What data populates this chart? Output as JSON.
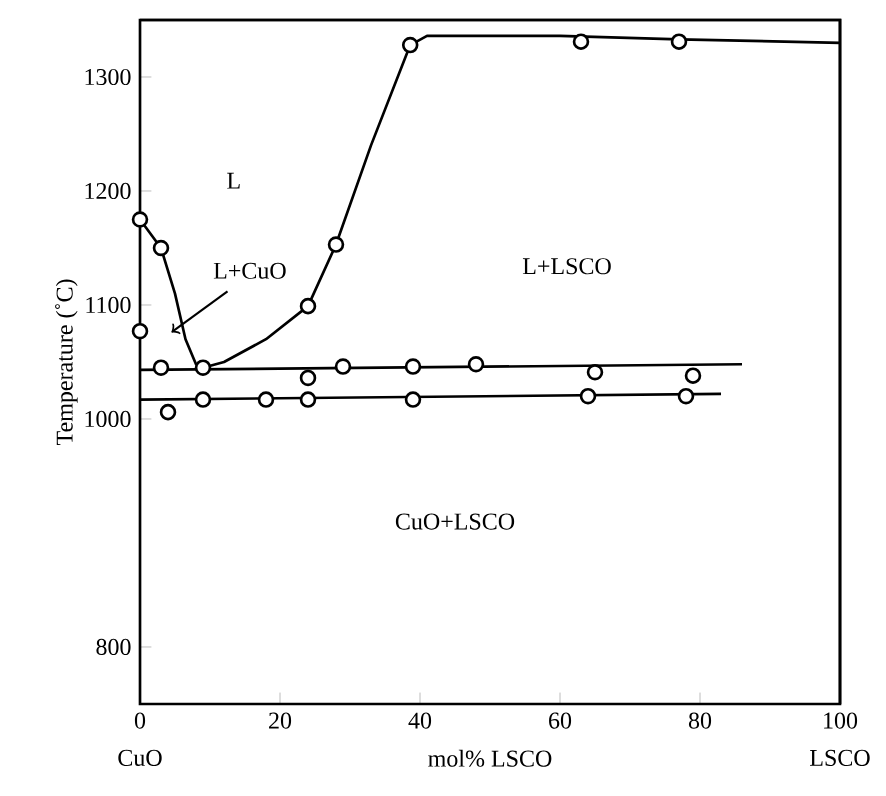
{
  "chart_data": {
    "type": "line",
    "xlabel": "mol% LSCO",
    "ylabel": "Temperature (˚C)",
    "xlim": [
      0,
      100
    ],
    "ylim": [
      750,
      1350
    ],
    "xticks": [
      0,
      20,
      40,
      60,
      80,
      100
    ],
    "yticks": [
      800,
      1000,
      1100,
      1200,
      1300
    ],
    "grid": false,
    "line_style": "solid",
    "annotations": [
      "L",
      "L+CuO",
      "L+LSCO",
      "CuO+LSCO",
      "CuO",
      "LSCO"
    ],
    "series": [
      {
        "color": "#000000",
        "marker": "none",
        "x": [
          0,
          3,
          5,
          6.5,
          8,
          9
        ],
        "values": [
          1175,
          1150,
          1110,
          1070,
          1048,
          1045
        ]
      },
      {
        "color": "#000000",
        "marker": "none",
        "x": [
          9,
          12,
          18,
          24,
          28,
          33,
          38.6,
          41,
          60,
          77,
          100
        ],
        "values": [
          1045,
          1050,
          1070,
          1099,
          1153,
          1240,
          1328,
          1336,
          1336,
          1333,
          1330
        ]
      },
      {
        "color": "#000000",
        "marker": "none",
        "x": [
          0,
          86
        ],
        "values": [
          1043,
          1048
        ]
      },
      {
        "color": "#000000",
        "marker": "none",
        "x": [
          0,
          83
        ],
        "values": [
          1017,
          1022
        ]
      },
      {
        "type": "scatter",
        "color": "#000000",
        "marker": "circle",
        "x": [
          0,
          0,
          3,
          24,
          28,
          38.6,
          63,
          77,
          3,
          9,
          24,
          29,
          39,
          48,
          65,
          79,
          4,
          9,
          18,
          24,
          39,
          64,
          78
        ],
        "values": [
          1175,
          1077,
          1150,
          1099,
          1153,
          1328,
          1331,
          1331,
          1045,
          1045,
          1036,
          1046,
          1046,
          1048,
          1041,
          1038,
          1006,
          1017,
          1017,
          1017,
          1017,
          1020,
          1020
        ]
      }
    ]
  }
}
